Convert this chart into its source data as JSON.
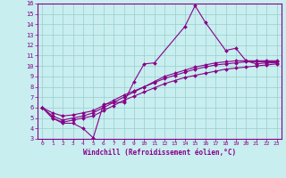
{
  "xlabel": "Windchill (Refroidissement éolien,°C)",
  "background_color": "#c8eef0",
  "line_color": "#880088",
  "grid_color": "#99cccc",
  "xlim": [
    -0.5,
    23.5
  ],
  "ylim": [
    3,
    16
  ],
  "xticks": [
    0,
    1,
    2,
    3,
    4,
    5,
    6,
    7,
    8,
    9,
    10,
    11,
    12,
    13,
    14,
    15,
    16,
    17,
    18,
    19,
    20,
    21,
    22,
    23
  ],
  "yticks": [
    3,
    4,
    5,
    6,
    7,
    8,
    9,
    10,
    11,
    12,
    13,
    14,
    15,
    16
  ],
  "series": [
    [
      6.0,
      5.0,
      4.5,
      4.5,
      4.0,
      3.1,
      6.3,
      6.5,
      6.5,
      8.5,
      10.2,
      10.3,
      null,
      null,
      13.8,
      15.8,
      14.2,
      null,
      11.5,
      11.7,
      10.5,
      10.2,
      10.3,
      10.3
    ],
    [
      6.0,
      5.2,
      4.8,
      5.0,
      5.2,
      5.5,
      6.0,
      6.5,
      7.0,
      7.5,
      8.0,
      8.5,
      9.0,
      9.3,
      9.6,
      9.9,
      10.1,
      10.3,
      10.4,
      10.5,
      10.5,
      10.5,
      10.5,
      10.5
    ],
    [
      6.0,
      5.0,
      4.6,
      4.8,
      5.0,
      5.2,
      5.7,
      6.2,
      6.7,
      7.1,
      7.5,
      7.9,
      8.3,
      8.6,
      8.9,
      9.1,
      9.3,
      9.5,
      9.7,
      9.8,
      9.9,
      10.0,
      10.1,
      10.2
    ],
    [
      6.0,
      5.5,
      5.2,
      5.3,
      5.5,
      5.7,
      6.2,
      6.7,
      7.2,
      7.6,
      8.0,
      8.4,
      8.8,
      9.1,
      9.4,
      9.7,
      9.9,
      10.1,
      10.2,
      10.3,
      10.4,
      10.4,
      10.4,
      10.4
    ]
  ]
}
